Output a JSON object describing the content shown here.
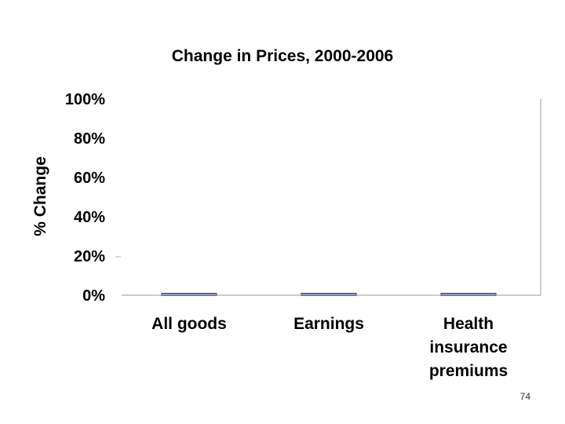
{
  "chart_data": {
    "type": "bar",
    "title": "Change in Prices, 2000-2006",
    "xlabel": "",
    "ylabel": "% Change",
    "ylim": [
      0,
      100
    ],
    "yticks": [
      "0%",
      "20%",
      "40%",
      "60%",
      "80%",
      "100%"
    ],
    "categories": [
      [
        "All goods"
      ],
      [
        "Earnings"
      ],
      [
        "Health",
        "insurance",
        "premiums"
      ]
    ],
    "values": [
      1,
      1,
      1
    ],
    "bar_color": "#8c96d8",
    "bar_edge_color": "#3a3f7a",
    "grid": false,
    "legend": "none"
  },
  "page_number": "74"
}
